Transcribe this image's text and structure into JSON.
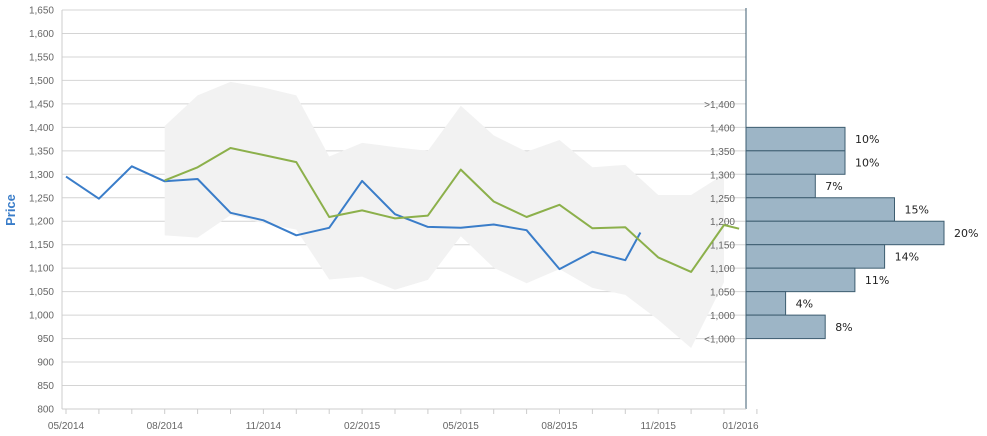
{
  "chart_data": {
    "type": "line",
    "ylabel": "Price",
    "xlabel": "",
    "ylim": [
      800,
      1650
    ],
    "y_ticks": [
      "800",
      "850",
      "900",
      "950",
      "1,000",
      "1,050",
      "1,100",
      "1,150",
      "1,200",
      "1,250",
      "1,300",
      "1,350",
      "1,400",
      "1,450",
      "1,500",
      "1,550",
      "1,600",
      "1,650"
    ],
    "x_ticks": [
      "05/2014",
      "08/2014",
      "11/2014",
      "02/2015",
      "05/2015",
      "08/2015",
      "11/2015",
      "01/2016"
    ],
    "series": [
      {
        "color": "#3a7dc9",
        "points": [
          [
            "2014-05-01",
            1295
          ],
          [
            "2014-06-01",
            1248
          ],
          [
            "2014-07-01",
            1317
          ],
          [
            "2014-08-01",
            1285
          ],
          [
            "2014-09-01",
            1290
          ],
          [
            "2014-10-01",
            1218
          ],
          [
            "2014-11-01",
            1202
          ],
          [
            "2014-12-01",
            1170
          ],
          [
            "2015-01-01",
            1186
          ],
          [
            "2015-02-01",
            1286
          ],
          [
            "2015-03-01",
            1215
          ],
          [
            "2015-04-01",
            1188
          ],
          [
            "2015-05-01",
            1186
          ],
          [
            "2015-06-01",
            1193
          ],
          [
            "2015-07-01",
            1181
          ],
          [
            "2015-08-01",
            1098
          ],
          [
            "2015-09-01",
            1135
          ],
          [
            "2015-10-01",
            1117
          ],
          [
            "2015-10-15",
            1176
          ]
        ]
      },
      {
        "color": "#8cb04b",
        "points": [
          [
            "2014-08-01",
            1287
          ],
          [
            "2014-09-01",
            1315
          ],
          [
            "2014-10-01",
            1356
          ],
          [
            "2014-11-01",
            1341
          ],
          [
            "2014-12-01",
            1326
          ],
          [
            "2015-01-01",
            1209
          ],
          [
            "2015-02-01",
            1223
          ],
          [
            "2015-03-01",
            1206
          ],
          [
            "2015-04-01",
            1212
          ],
          [
            "2015-05-01",
            1310
          ],
          [
            "2015-06-01",
            1242
          ],
          [
            "2015-07-01",
            1209
          ],
          [
            "2015-08-01",
            1235
          ],
          [
            "2015-09-01",
            1185
          ],
          [
            "2015-10-01",
            1187
          ],
          [
            "2015-11-01",
            1123
          ],
          [
            "2015-12-01",
            1092
          ],
          [
            "2016-01-01",
            1192
          ],
          [
            "2016-01-15",
            1184
          ]
        ]
      }
    ],
    "band": {
      "color": "#f2f2f2",
      "upper": [
        [
          "2014-08-01",
          1403
        ],
        [
          "2014-09-01",
          1468
        ],
        [
          "2014-10-01",
          1497
        ],
        [
          "2014-11-01",
          1485
        ],
        [
          "2014-12-01",
          1468
        ],
        [
          "2015-01-01",
          1338
        ],
        [
          "2015-02-01",
          1367
        ],
        [
          "2015-03-01",
          1358
        ],
        [
          "2015-04-01",
          1350
        ],
        [
          "2015-05-01",
          1446
        ],
        [
          "2015-06-01",
          1383
        ],
        [
          "2015-07-01",
          1348
        ],
        [
          "2015-08-01",
          1373
        ],
        [
          "2015-09-01",
          1315
        ],
        [
          "2015-10-01",
          1320
        ],
        [
          "2015-11-01",
          1256
        ],
        [
          "2015-12-01",
          1256
        ],
        [
          "2016-01-01",
          1300
        ]
      ],
      "lower": [
        [
          "2014-08-01",
          1170
        ],
        [
          "2014-09-01",
          1165
        ],
        [
          "2014-10-01",
          1213
        ],
        [
          "2014-11-01",
          1196
        ],
        [
          "2014-12-01",
          1182
        ],
        [
          "2015-01-01",
          1076
        ],
        [
          "2015-02-01",
          1082
        ],
        [
          "2015-03-01",
          1054
        ],
        [
          "2015-04-01",
          1075
        ],
        [
          "2015-05-01",
          1168
        ],
        [
          "2015-06-01",
          1101
        ],
        [
          "2015-07-01",
          1068
        ],
        [
          "2015-08-01",
          1098
        ],
        [
          "2015-09-01",
          1058
        ],
        [
          "2015-10-01",
          1043
        ],
        [
          "2015-11-01",
          990
        ],
        [
          "2015-12-01",
          930
        ],
        [
          "2016-01-01",
          1070
        ]
      ]
    },
    "distribution": {
      "color": "#9db5c6",
      "border": "#3d5d70",
      "bins": [
        {
          "label": ">1,400",
          "range": [
            1400,
            1450
          ],
          "percent": null,
          "text": ""
        },
        {
          "label": "1,400",
          "range": [
            1350,
            1400
          ],
          "percent": 10,
          "text": "10%"
        },
        {
          "label": "1,350",
          "range": [
            1300,
            1350
          ],
          "percent": 10,
          "text": "10%"
        },
        {
          "label": "1,300",
          "range": [
            1250,
            1300
          ],
          "percent": 7,
          "text": "7%"
        },
        {
          "label": "1,250",
          "range": [
            1200,
            1250
          ],
          "percent": 15,
          "text": "15%"
        },
        {
          "label": "1,200",
          "range": [
            1150,
            1200
          ],
          "percent": 20,
          "text": "20%"
        },
        {
          "label": "1,150",
          "range": [
            1100,
            1150
          ],
          "percent": 14,
          "text": "14%"
        },
        {
          "label": "1,100",
          "range": [
            1050,
            1100
          ],
          "percent": 11,
          "text": "11%"
        },
        {
          "label": "1,050",
          "range": [
            1000,
            1050
          ],
          "percent": 4,
          "text": "4%"
        },
        {
          "label": "1,000",
          "range": [
            950,
            1000
          ],
          "percent": 8,
          "text": "8%"
        },
        {
          "label": "<1,000",
          "range": [
            900,
            950
          ],
          "percent": null,
          "text": ""
        }
      ]
    }
  }
}
